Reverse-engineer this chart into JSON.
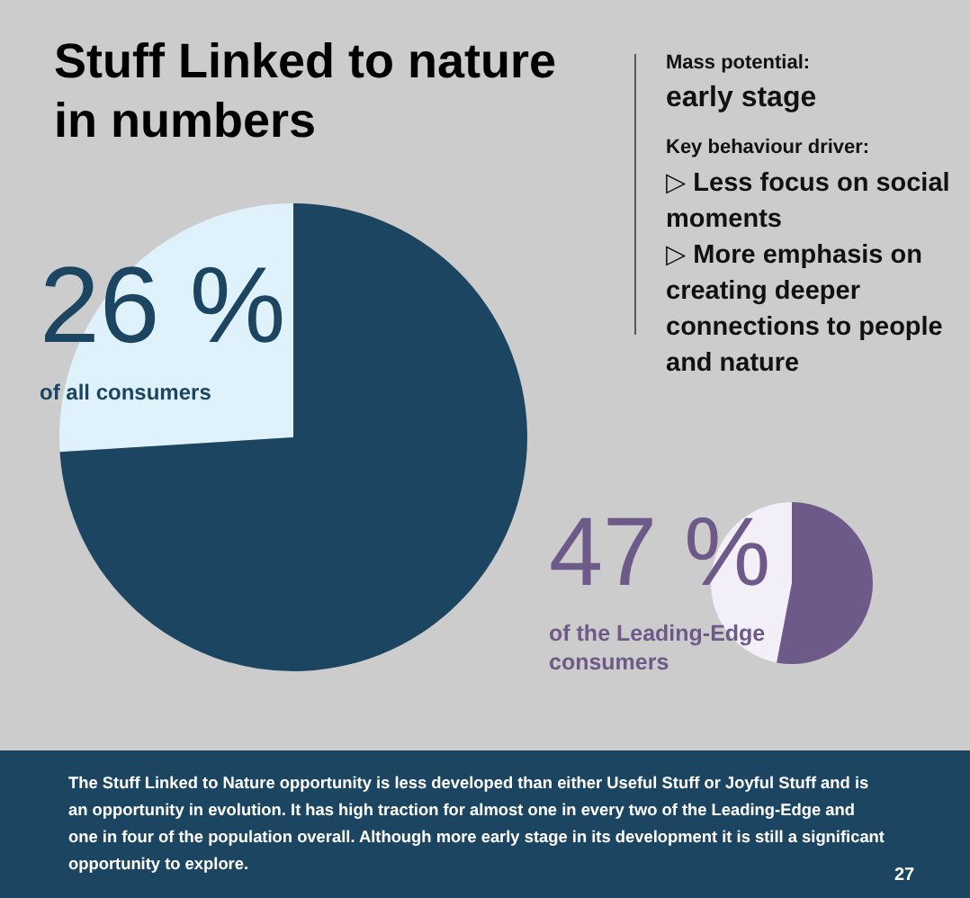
{
  "chart_data": [
    {
      "type": "pie",
      "title": "Stuff Linked to nature in numbers",
      "categories": [
        null,
        null
      ],
      "values": [
        26,
        74
      ],
      "colors": [
        "#dff1fa",
        "#1b4560"
      ],
      "value_labels": [
        "26 %",
        null
      ],
      "annotations": [
        "of all consumers"
      ]
    },
    {
      "type": "pie",
      "categories": [
        null,
        null
      ],
      "values": [
        47,
        53
      ],
      "colors": [
        "#f2eff8",
        "#6e5a88"
      ],
      "value_labels": [
        "47 %",
        null
      ],
      "annotations": [
        "of the Leading-Edge consumers"
      ]
    },
    {
      "type": "other",
      "annotations": [
        "Mass potential:",
        "early stage",
        "Key behaviour driver:",
        "▷ Less focus on social moments",
        "▷ More emphasis on creating deeper connections to people and nature",
        "The Stuff Linked to Nature opportunity is less developed than either Useful Stuff or Joyful Stuff and is an opportunity in evolution. It has high traction for almost one in every two of the Leading-Edge and one in four of the population overall. Although more early stage in its development it is still a significant opportunity to explore.",
        "27"
      ]
    }
  ]
}
